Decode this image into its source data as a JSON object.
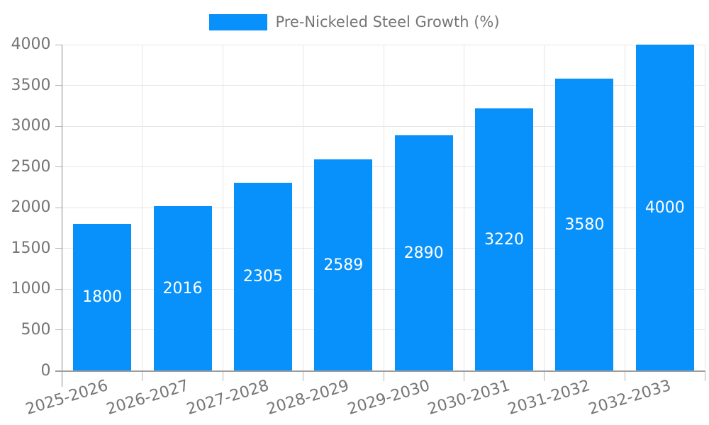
{
  "chart_data": {
    "type": "bar",
    "title": "",
    "legend": "Pre-Nickeled Steel Growth (%)",
    "legend_position": "top",
    "categories": [
      "2025-2026",
      "2026-2027",
      "2027-2028",
      "2028-2029",
      "2029-2030",
      "2030-2031",
      "2031-2032",
      "2032-2033"
    ],
    "values": [
      1800,
      2016,
      2305,
      2589,
      2890,
      3220,
      3580,
      4000
    ],
    "xlabel": "",
    "ylabel": "",
    "ylim": [
      0,
      4000
    ],
    "yticks": [
      0,
      500,
      1000,
      1500,
      2000,
      2500,
      3000,
      3500,
      4000
    ],
    "grid": true,
    "bar_color": "#0891fa",
    "bar_label_color": "#ffffff",
    "axis_text_color": "#757575",
    "grid_color": "#e6e6e6",
    "tick_color": "#b3b3b3",
    "axis_line_color": "#9e9e9e",
    "y_axis_line_color": "#8a8a8a"
  }
}
